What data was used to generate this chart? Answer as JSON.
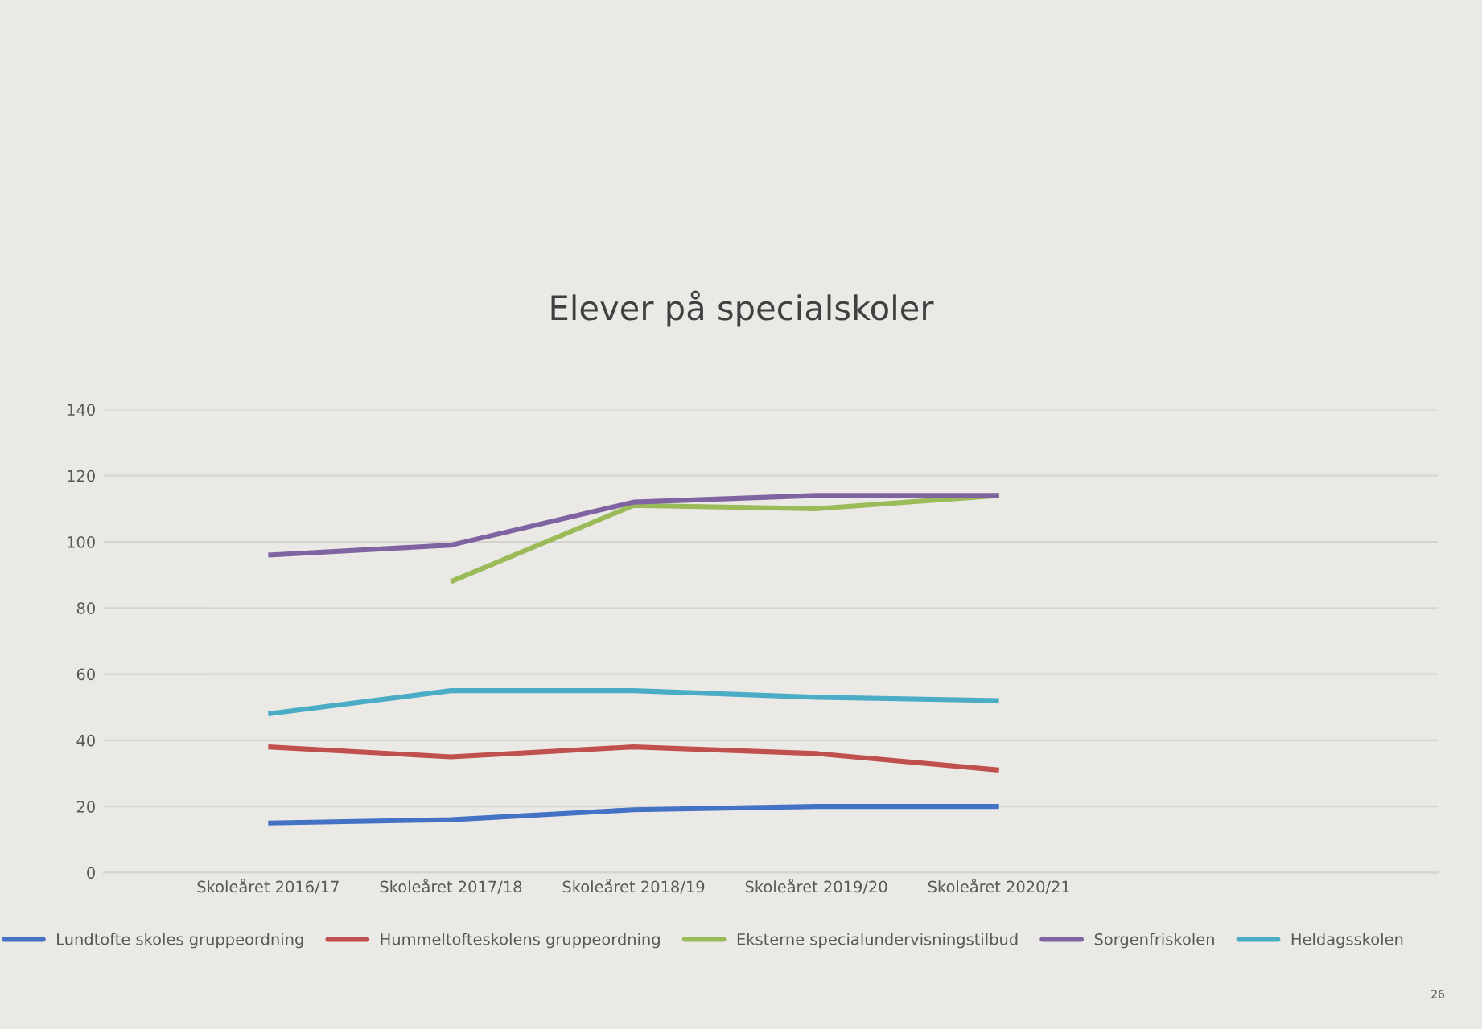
{
  "chart_data": {
    "type": "line",
    "title": "Elever på specialskoler",
    "categories": [
      "Skoleåret 2016/17",
      "Skoleåret 2017/18",
      "Skoleåret 2018/19",
      "Skoleåret 2019/20",
      "Skoleåret 2020/21",
      null,
      null
    ],
    "series": [
      {
        "name": "Lundtofte skoles gruppeordning",
        "color": "#4472c4",
        "values": [
          15,
          16,
          19,
          20,
          20,
          null,
          null
        ]
      },
      {
        "name": "Hummeltofteskolens gruppeordning",
        "color": "#c0504d",
        "values": [
          38,
          35,
          38,
          36,
          31,
          null,
          null
        ]
      },
      {
        "name": "Eksterne specialundervisningstilbud",
        "color": "#9bbb59",
        "values": [
          null,
          88,
          111,
          110,
          114,
          null,
          null
        ]
      },
      {
        "name": "Sorgenfriskolen",
        "color": "#8064a2",
        "values": [
          96,
          99,
          112,
          114,
          114,
          null,
          null
        ]
      },
      {
        "name": "Heldagsskolen",
        "color": "#4bacc6",
        "values": [
          48,
          55,
          55,
          53,
          52,
          null,
          null
        ]
      }
    ],
    "ylim": [
      0,
      140
    ],
    "yticks": [
      0,
      20,
      40,
      60,
      80,
      100,
      120,
      140
    ],
    "grid": "y",
    "legend": "bottom",
    "marker": "none",
    "line_style": "solid",
    "annotations": [
      "26"
    ]
  }
}
